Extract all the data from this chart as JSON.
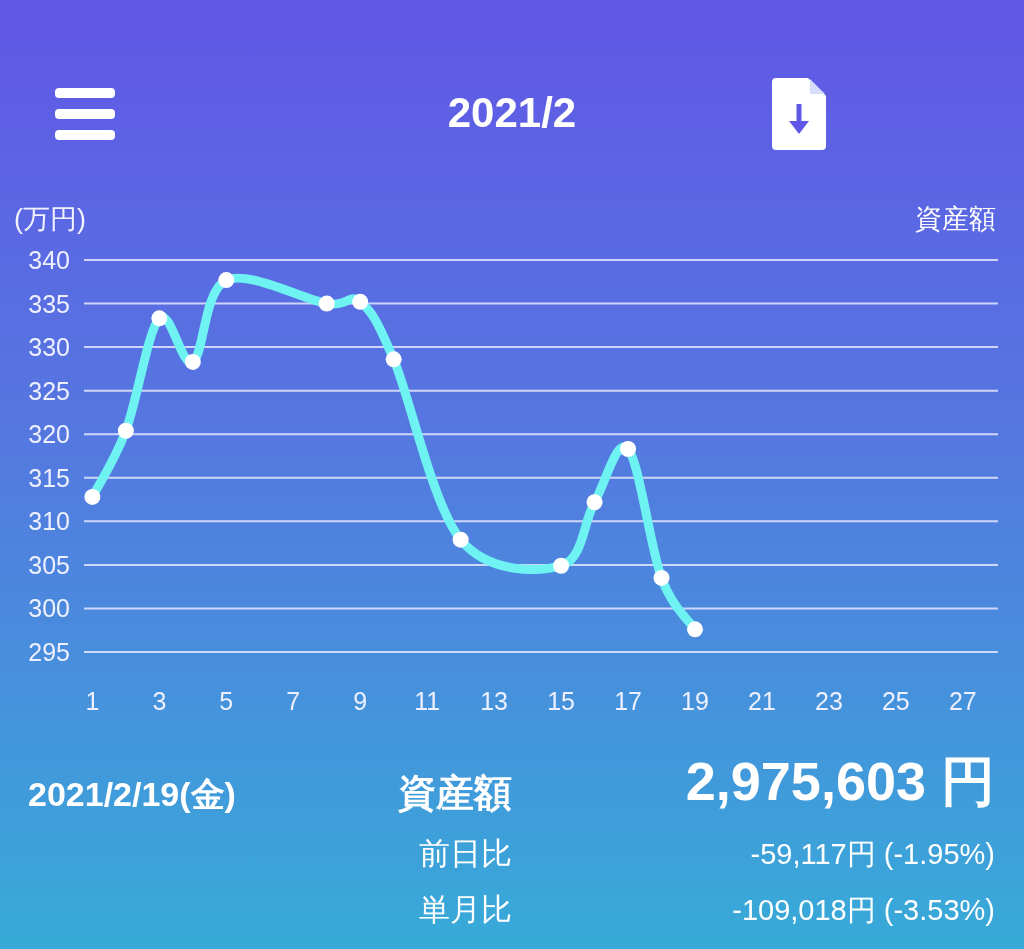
{
  "chart_data": {
    "type": "line",
    "title": "2021/2",
    "ylabel": "(万円)",
    "x": [
      1,
      2,
      3,
      4,
      5,
      8,
      9,
      10,
      12,
      15,
      16,
      17,
      18,
      19
    ],
    "series": [
      {
        "color": "#6ef2f2",
        "values": [
          312.8,
          320.4,
          333.3,
          328.3,
          337.7,
          335.0,
          335.2,
          328.6,
          307.9,
          304.9,
          312.2,
          318.3,
          303.5,
          297.6
        ]
      }
    ],
    "xlim": [
      0.75,
      28.05
    ],
    "xticks": [
      1,
      3,
      5,
      7,
      9,
      11,
      13,
      15,
      17,
      19,
      21,
      23,
      25,
      27
    ],
    "ylim": [
      295,
      340
    ],
    "yticks": [
      295,
      300,
      305,
      310,
      315,
      320,
      325,
      330,
      335,
      340
    ],
    "grid": "y",
    "marker": "circle",
    "line_style": "solid",
    "annotations": [
      "資産額",
      "2021/2/19(金)",
      "資産額",
      "2,975,603 円",
      "前日比",
      "-59,117円 (-1.95%)",
      "単月比",
      "-109,018円 (-3.53%)"
    ]
  }
}
